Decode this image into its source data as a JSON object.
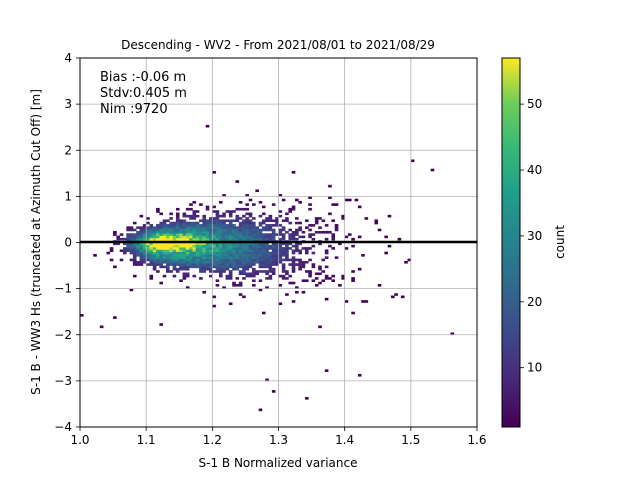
{
  "chart_data": {
    "type": "heatmap",
    "title": "Descending - WV2 - From 2021/08/01 to 2021/08/29",
    "xlabel": "S-1 B Normalized variance",
    "ylabel": "S-1 B - WW3 Hs (truncated at Azimuth Cut Off) [m]",
    "xlim": [
      1.0,
      1.6
    ],
    "ylim": [
      -4,
      4
    ],
    "xticks": [
      "1.0",
      "1.1",
      "1.2",
      "1.3",
      "1.4",
      "1.5",
      "1.6"
    ],
    "yticks": [
      "4",
      "3",
      "2",
      "1",
      "0",
      "−1",
      "−2",
      "−3",
      "−4"
    ],
    "grid": true,
    "zero_line": 0,
    "annotations": [
      "Bias :-0.06 m",
      "Stdv:0.405 m",
      "Nim :9720"
    ],
    "colorbar": {
      "label": "count",
      "range": [
        1,
        57
      ],
      "ticks": [
        "10",
        "20",
        "30",
        "40",
        "50"
      ],
      "colormap": "viridis"
    },
    "density_core": {
      "x_center": 1.13,
      "y_center": 0.0,
      "peak_count": 57
    }
  }
}
